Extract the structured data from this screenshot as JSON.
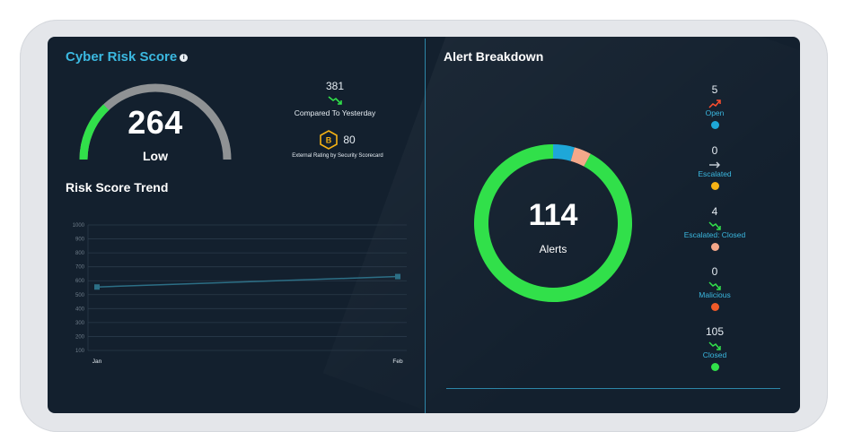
{
  "cyber_risk": {
    "title": "Cyber Risk Score",
    "info_icon": "info-icon",
    "score": "264",
    "level": "Low",
    "gauge_fraction": 0.26,
    "compared_value": "381",
    "compared_label": "Compared To Yesterday",
    "rating_grade": "B",
    "rating_value": "80",
    "rating_label": "External Rating by Security Scorecard"
  },
  "risk_trend": {
    "title": "Risk Score Trend",
    "chart_data": {
      "type": "line",
      "x": [
        "Jan",
        "Feb"
      ],
      "y_ticks": [
        "100",
        "200",
        "300",
        "400",
        "500",
        "600",
        "700",
        "800",
        "900",
        "1000"
      ],
      "ylim": [
        100,
        1000
      ],
      "series": [
        {
          "values": [
            555,
            630
          ]
        }
      ],
      "grid": true
    }
  },
  "alert_breakdown": {
    "title": "Alert Breakdown",
    "total": "114",
    "total_label": "Alerts",
    "items": [
      {
        "count": "5",
        "label": "Open",
        "color": "#1ea7d8",
        "trend": "up"
      },
      {
        "count": "0",
        "label": "Escalated",
        "color": "#f6b214",
        "trend": "flat"
      },
      {
        "count": "4",
        "label": "Escalated: Closed",
        "color": "#f4a88a",
        "trend": "down"
      },
      {
        "count": "0",
        "label": "Malicious",
        "color": "#f05a28",
        "trend": "down"
      },
      {
        "count": "105",
        "label": "Closed",
        "color": "#31e04a",
        "trend": "down"
      }
    ]
  },
  "colors": {
    "accent": "#3bb8e0",
    "gauge_low": "#31e04a",
    "gauge_track": "#8f9294",
    "trend_line": "#2c6f86",
    "trend_down": "#31e04a",
    "trend_up": "#ff4d2e"
  }
}
